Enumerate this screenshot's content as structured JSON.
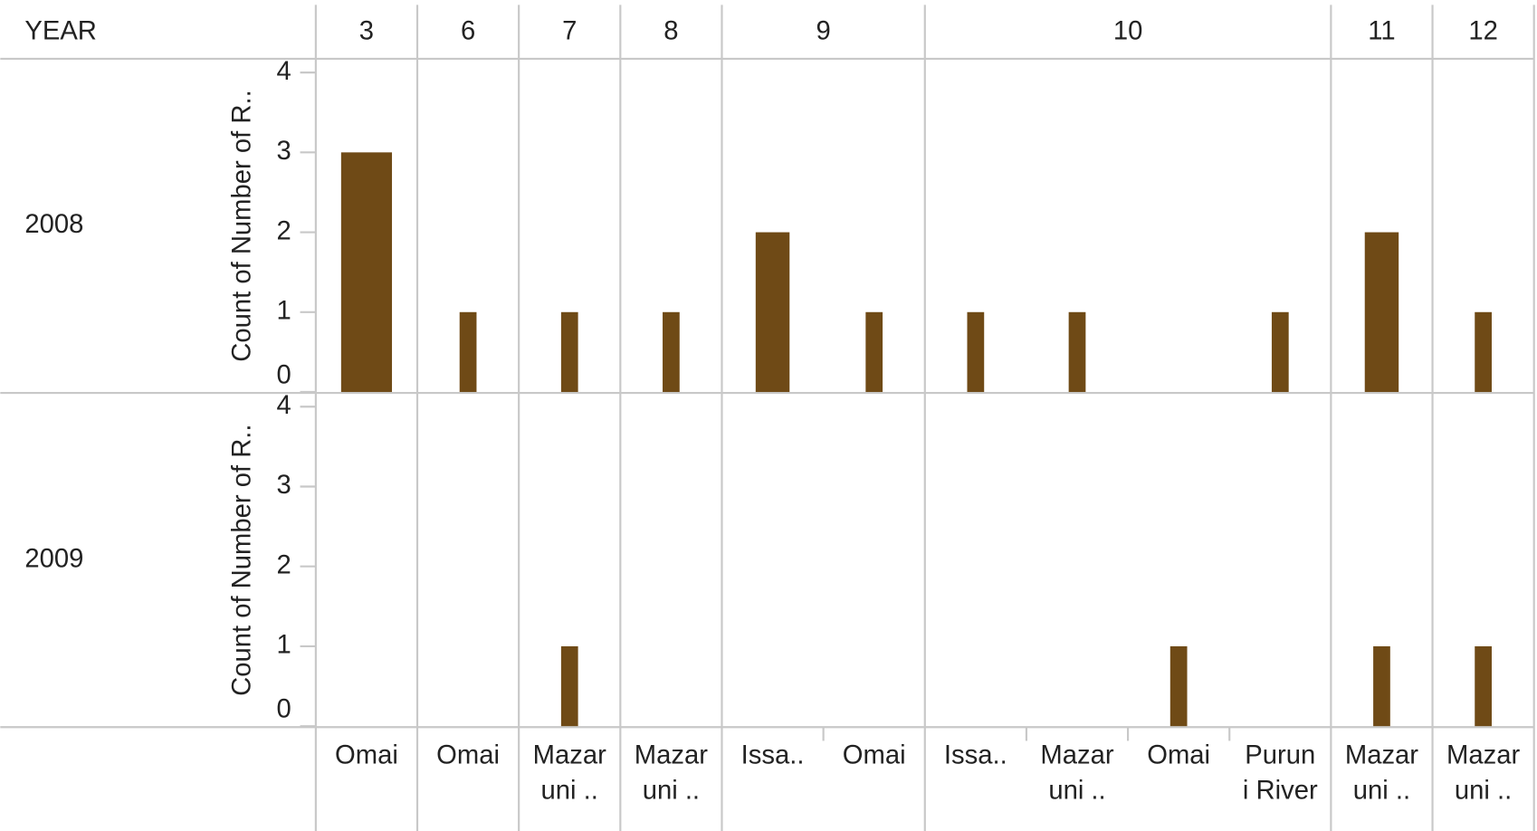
{
  "chart_data": {
    "type": "bar",
    "row_header": "YEAR",
    "y_label": "Count of Number of R..",
    "column_groups": [
      "3",
      "6",
      "7",
      "8",
      "9",
      "9",
      "10",
      "10",
      "10",
      "10",
      "11",
      "12"
    ],
    "categories": [
      [
        "Omai"
      ],
      [
        "Omai"
      ],
      [
        "Mazar",
        "uni .."
      ],
      [
        "Mazar",
        "uni .."
      ],
      [
        "Issa.."
      ],
      [
        "Omai"
      ],
      [
        "Issa.."
      ],
      [
        "Mazar",
        "uni .."
      ],
      [
        "Omai"
      ],
      [
        "Purun",
        "i River"
      ],
      [
        "Mazar",
        "uni .."
      ],
      [
        "Mazar",
        "uni .."
      ]
    ],
    "series": [
      {
        "name": "2008",
        "color": "#6f4a16",
        "values": [
          3,
          1,
          1,
          1,
          2,
          1,
          1,
          1,
          null,
          1,
          2,
          1
        ]
      },
      {
        "name": "2009",
        "color": "#6f4a16",
        "values": [
          null,
          null,
          1,
          null,
          null,
          null,
          null,
          null,
          1,
          null,
          1,
          1
        ]
      }
    ],
    "ylim": [
      0,
      4
    ],
    "yticks": [
      0,
      1,
      2,
      3,
      4
    ]
  }
}
